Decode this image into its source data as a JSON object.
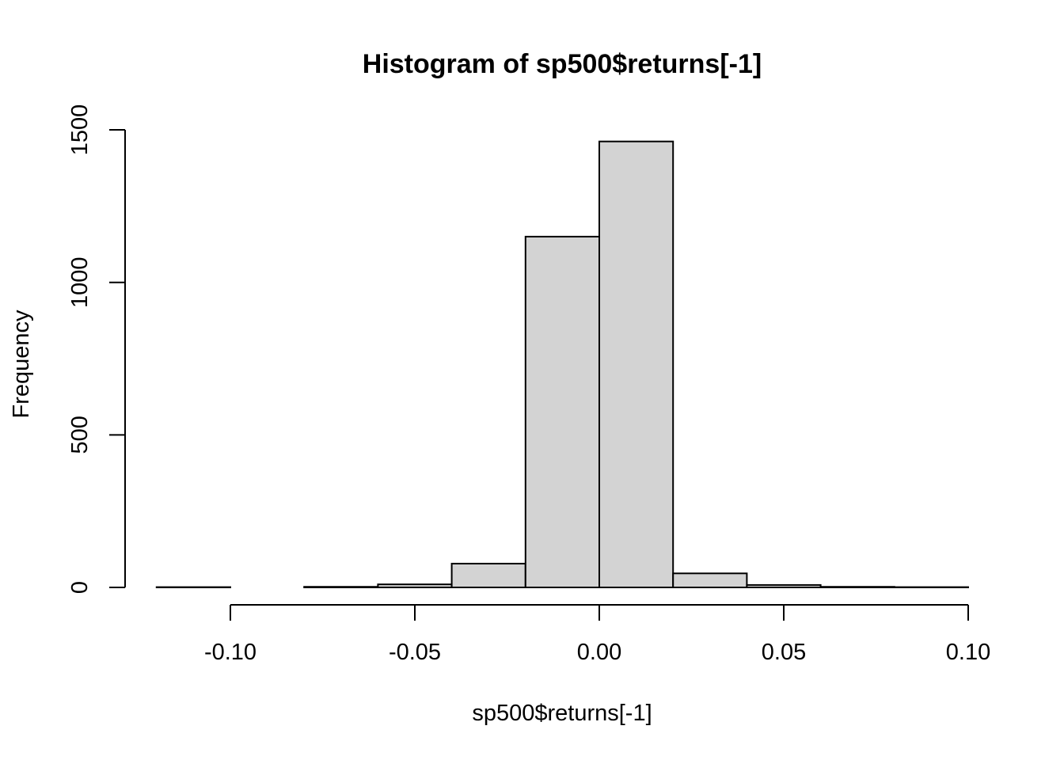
{
  "chart_data": {
    "type": "bar",
    "title": "Histogram of sp500$returns[-1]",
    "xlabel": "sp500$returns[-1]",
    "ylabel": "Frequency",
    "xlim": [
      -0.12,
      0.1
    ],
    "ylim": [
      0,
      1500
    ],
    "x_ticks": [
      {
        "value": -0.1,
        "label": "-0.10"
      },
      {
        "value": -0.05,
        "label": "-0.05"
      },
      {
        "value": 0.0,
        "label": "0.00"
      },
      {
        "value": 0.05,
        "label": "0.05"
      },
      {
        "value": 0.1,
        "label": "0.10"
      }
    ],
    "y_ticks": [
      {
        "value": 0,
        "label": "0"
      },
      {
        "value": 500,
        "label": "500"
      },
      {
        "value": 1000,
        "label": "1000"
      },
      {
        "value": 1500,
        "label": "1500"
      }
    ],
    "bins": [
      {
        "x0": -0.12,
        "x1": -0.1,
        "count": 1
      },
      {
        "x0": -0.1,
        "x1": -0.08,
        "count": 0
      },
      {
        "x0": -0.08,
        "x1": -0.06,
        "count": 2
      },
      {
        "x0": -0.06,
        "x1": -0.04,
        "count": 10
      },
      {
        "x0": -0.04,
        "x1": -0.02,
        "count": 78
      },
      {
        "x0": -0.02,
        "x1": 0.0,
        "count": 1150
      },
      {
        "x0": 0.0,
        "x1": 0.02,
        "count": 1462
      },
      {
        "x0": 0.02,
        "x1": 0.04,
        "count": 46
      },
      {
        "x0": 0.04,
        "x1": 0.06,
        "count": 8
      },
      {
        "x0": 0.06,
        "x1": 0.08,
        "count": 2
      },
      {
        "x0": 0.08,
        "x1": 0.1,
        "count": 1
      }
    ],
    "bar_fill": "#d3d3d3",
    "bar_stroke": "#000000",
    "grid": false,
    "legend": "none"
  }
}
